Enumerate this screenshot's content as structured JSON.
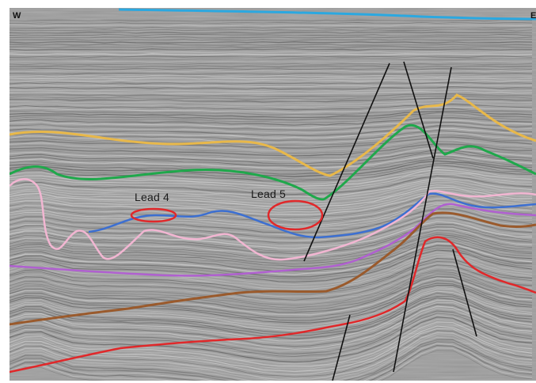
{
  "section": {
    "west_label": "W",
    "east_label": "E"
  },
  "leads": [
    {
      "label": "Lead 4"
    },
    {
      "label": "Lead 5"
    }
  ],
  "colors": {
    "background": "#9c9c9c",
    "seabed": "#2ba8e0",
    "horizon_yellow": "#e8b84a",
    "horizon_green": "#1fa84b",
    "horizon_blue": "#3c6fd1",
    "horizon_pink": "#f2b6d2",
    "horizon_purple": "#b060d0",
    "horizon_brown": "#9a5a2c",
    "horizon_red": "#e0282a",
    "fault": "#111111",
    "lead_outline": "#e0282a"
  }
}
